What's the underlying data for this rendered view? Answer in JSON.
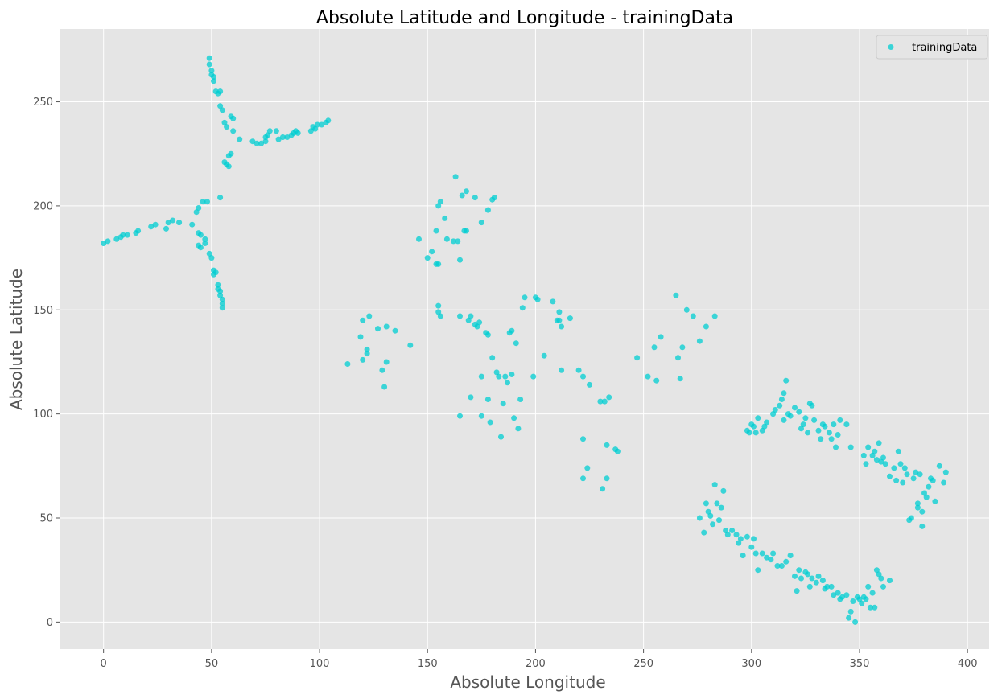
{
  "chart_data": {
    "type": "scatter",
    "title": "Absolute Latitude and Longitude - trainingData",
    "xlabel": "Absolute Longitude",
    "ylabel": "Absolute Latitude",
    "xlim": [
      -20,
      410
    ],
    "ylim": [
      -13,
      285
    ],
    "xticks": [
      0,
      50,
      100,
      150,
      200,
      250,
      300,
      350,
      400
    ],
    "yticks": [
      0,
      50,
      100,
      150,
      200,
      250
    ],
    "grid": true,
    "legend_position": "top-right",
    "series": [
      {
        "name": "trainingData",
        "color": "#00CED1",
        "points": [
          [
            0,
            182
          ],
          [
            2,
            183
          ],
          [
            6,
            184
          ],
          [
            8,
            185
          ],
          [
            9,
            186
          ],
          [
            11,
            186
          ],
          [
            15,
            187
          ],
          [
            16,
            188
          ],
          [
            22,
            190
          ],
          [
            24,
            191
          ],
          [
            29,
            189
          ],
          [
            30,
            192
          ],
          [
            32,
            193
          ],
          [
            35,
            192
          ],
          [
            41,
            191
          ],
          [
            43,
            197
          ],
          [
            44,
            199
          ],
          [
            46,
            202
          ],
          [
            48,
            202
          ],
          [
            49,
            271
          ],
          [
            49,
            268
          ],
          [
            50,
            265
          ],
          [
            50,
            263
          ],
          [
            51,
            262
          ],
          [
            51,
            260
          ],
          [
            52,
            255
          ],
          [
            53,
            254
          ],
          [
            54,
            255
          ],
          [
            54,
            248
          ],
          [
            55,
            246
          ],
          [
            56,
            240
          ],
          [
            57,
            238
          ],
          [
            59,
            243
          ],
          [
            60,
            242
          ],
          [
            60,
            236
          ],
          [
            63,
            232
          ],
          [
            69,
            231
          ],
          [
            71,
            230
          ],
          [
            73,
            230
          ],
          [
            75,
            231
          ],
          [
            75,
            233
          ],
          [
            76,
            234
          ],
          [
            77,
            236
          ],
          [
            80,
            236
          ],
          [
            81,
            232
          ],
          [
            83,
            233
          ],
          [
            85,
            233
          ],
          [
            87,
            234
          ],
          [
            88,
            235
          ],
          [
            89,
            236
          ],
          [
            90,
            235
          ],
          [
            96,
            236
          ],
          [
            97,
            238
          ],
          [
            98,
            237
          ],
          [
            99,
            239
          ],
          [
            101,
            239
          ],
          [
            103,
            240
          ],
          [
            104,
            241
          ],
          [
            56,
            221
          ],
          [
            57,
            220
          ],
          [
            58,
            219
          ],
          [
            58,
            224
          ],
          [
            59,
            225
          ],
          [
            54,
            204
          ],
          [
            44,
            187
          ],
          [
            45,
            186
          ],
          [
            44,
            181
          ],
          [
            45,
            180
          ],
          [
            47,
            184
          ],
          [
            47,
            182
          ],
          [
            49,
            177
          ],
          [
            50,
            175
          ],
          [
            51,
            169
          ],
          [
            51,
            167
          ],
          [
            52,
            168
          ],
          [
            53,
            162
          ],
          [
            53,
            160
          ],
          [
            54,
            159
          ],
          [
            54,
            157
          ],
          [
            55,
            155
          ],
          [
            55,
            153
          ],
          [
            55,
            151
          ],
          [
            113,
            124
          ],
          [
            119,
            137
          ],
          [
            120,
            145
          ],
          [
            120,
            126
          ],
          [
            122,
            131
          ],
          [
            122,
            129
          ],
          [
            123,
            147
          ],
          [
            127,
            141
          ],
          [
            129,
            121
          ],
          [
            130,
            113
          ],
          [
            131,
            125
          ],
          [
            131,
            142
          ],
          [
            135,
            140
          ],
          [
            142,
            133
          ],
          [
            146,
            184
          ],
          [
            150,
            175
          ],
          [
            152,
            178
          ],
          [
            154,
            172
          ],
          [
            154,
            188
          ],
          [
            155,
            172
          ],
          [
            155,
            200
          ],
          [
            155,
            149
          ],
          [
            155,
            152
          ],
          [
            156,
            202
          ],
          [
            156,
            147
          ],
          [
            158,
            194
          ],
          [
            159,
            184
          ],
          [
            162,
            183
          ],
          [
            163,
            214
          ],
          [
            164,
            183
          ],
          [
            165,
            174
          ],
          [
            166,
            205
          ],
          [
            167,
            188
          ],
          [
            168,
            188
          ],
          [
            168,
            207
          ],
          [
            172,
            204
          ],
          [
            175,
            192
          ],
          [
            178,
            198
          ],
          [
            180,
            203
          ],
          [
            181,
            204
          ],
          [
            165,
            147
          ],
          [
            169,
            145
          ],
          [
            170,
            108
          ],
          [
            170,
            147
          ],
          [
            172,
            143
          ],
          [
            173,
            142
          ],
          [
            174,
            144
          ],
          [
            175,
            118
          ],
          [
            175,
            99
          ],
          [
            177,
            139
          ],
          [
            178,
            138
          ],
          [
            178,
            107
          ],
          [
            179,
            96
          ],
          [
            180,
            127
          ],
          [
            182,
            120
          ],
          [
            183,
            118
          ],
          [
            184,
            89
          ],
          [
            185,
            105
          ],
          [
            186,
            118
          ],
          [
            187,
            115
          ],
          [
            188,
            139
          ],
          [
            189,
            140
          ],
          [
            189,
            119
          ],
          [
            190,
            98
          ],
          [
            191,
            134
          ],
          [
            192,
            93
          ],
          [
            193,
            107
          ],
          [
            194,
            151
          ],
          [
            195,
            156
          ],
          [
            165,
            99
          ],
          [
            199,
            118
          ],
          [
            200,
            156
          ],
          [
            201,
            155
          ],
          [
            204,
            128
          ],
          [
            208,
            154
          ],
          [
            210,
            145
          ],
          [
            211,
            145
          ],
          [
            211,
            149
          ],
          [
            212,
            121
          ],
          [
            212,
            142
          ],
          [
            216,
            146
          ],
          [
            220,
            121
          ],
          [
            222,
            118
          ],
          [
            222,
            88
          ],
          [
            222,
            69
          ],
          [
            224,
            74
          ],
          [
            225,
            114
          ],
          [
            230,
            106
          ],
          [
            231,
            64
          ],
          [
            232,
            106
          ],
          [
            233,
            85
          ],
          [
            233,
            69
          ],
          [
            234,
            108
          ],
          [
            237,
            83
          ],
          [
            238,
            82
          ],
          [
            247,
            127
          ],
          [
            252,
            118
          ],
          [
            255,
            132
          ],
          [
            256,
            116
          ],
          [
            258,
            137
          ],
          [
            265,
            157
          ],
          [
            266,
            127
          ],
          [
            267,
            117
          ],
          [
            268,
            132
          ],
          [
            270,
            150
          ],
          [
            273,
            147
          ],
          [
            276,
            135
          ],
          [
            279,
            142
          ],
          [
            283,
            147
          ],
          [
            298,
            92
          ],
          [
            299,
            91
          ],
          [
            300,
            95
          ],
          [
            301,
            94
          ],
          [
            302,
            91
          ],
          [
            303,
            98
          ],
          [
            305,
            92
          ],
          [
            306,
            94
          ],
          [
            307,
            96
          ],
          [
            310,
            100
          ],
          [
            311,
            102
          ],
          [
            313,
            104
          ],
          [
            314,
            107
          ],
          [
            315,
            97
          ],
          [
            315,
            110
          ],
          [
            316,
            116
          ],
          [
            317,
            100
          ],
          [
            318,
            99
          ],
          [
            320,
            103
          ],
          [
            322,
            101
          ],
          [
            323,
            93
          ],
          [
            324,
            95
          ],
          [
            325,
            98
          ],
          [
            326,
            91
          ],
          [
            327,
            105
          ],
          [
            328,
            104
          ],
          [
            329,
            97
          ],
          [
            331,
            92
          ],
          [
            332,
            88
          ],
          [
            333,
            95
          ],
          [
            334,
            94
          ],
          [
            336,
            91
          ],
          [
            337,
            88
          ],
          [
            338,
            95
          ],
          [
            339,
            84
          ],
          [
            340,
            90
          ],
          [
            341,
            97
          ],
          [
            344,
            95
          ],
          [
            346,
            84
          ],
          [
            352,
            80
          ],
          [
            353,
            76
          ],
          [
            354,
            84
          ],
          [
            356,
            80
          ],
          [
            357,
            82
          ],
          [
            358,
            78
          ],
          [
            359,
            86
          ],
          [
            360,
            77
          ],
          [
            361,
            79
          ],
          [
            362,
            76
          ],
          [
            364,
            70
          ],
          [
            366,
            74
          ],
          [
            367,
            68
          ],
          [
            368,
            82
          ],
          [
            369,
            76
          ],
          [
            370,
            67
          ],
          [
            371,
            74
          ],
          [
            372,
            71
          ],
          [
            373,
            49
          ],
          [
            374,
            50
          ],
          [
            375,
            69
          ],
          [
            376,
            72
          ],
          [
            377,
            55
          ],
          [
            377,
            57
          ],
          [
            378,
            71
          ],
          [
            379,
            53
          ],
          [
            379,
            46
          ],
          [
            380,
            62
          ],
          [
            381,
            60
          ],
          [
            382,
            65
          ],
          [
            383,
            69
          ],
          [
            384,
            68
          ],
          [
            385,
            58
          ],
          [
            387,
            75
          ],
          [
            389,
            67
          ],
          [
            390,
            72
          ],
          [
            276,
            50
          ],
          [
            278,
            43
          ],
          [
            279,
            57
          ],
          [
            280,
            53
          ],
          [
            281,
            51
          ],
          [
            282,
            47
          ],
          [
            283,
            66
          ],
          [
            284,
            57
          ],
          [
            285,
            49
          ],
          [
            286,
            55
          ],
          [
            287,
            63
          ],
          [
            288,
            44
          ],
          [
            289,
            42
          ],
          [
            291,
            44
          ],
          [
            293,
            42
          ],
          [
            294,
            38
          ],
          [
            295,
            40
          ],
          [
            296,
            32
          ],
          [
            298,
            41
          ],
          [
            300,
            36
          ],
          [
            301,
            40
          ],
          [
            302,
            33
          ],
          [
            303,
            25
          ],
          [
            305,
            33
          ],
          [
            307,
            31
          ],
          [
            309,
            30
          ],
          [
            310,
            33
          ],
          [
            312,
            27
          ],
          [
            314,
            27
          ],
          [
            316,
            29
          ],
          [
            318,
            32
          ],
          [
            320,
            22
          ],
          [
            321,
            15
          ],
          [
            322,
            25
          ],
          [
            323,
            21
          ],
          [
            325,
            24
          ],
          [
            326,
            23
          ],
          [
            327,
            17
          ],
          [
            328,
            21
          ],
          [
            330,
            19
          ],
          [
            331,
            22
          ],
          [
            333,
            20
          ],
          [
            334,
            16
          ],
          [
            335,
            17
          ],
          [
            337,
            17
          ],
          [
            338,
            13
          ],
          [
            340,
            14
          ],
          [
            341,
            11
          ],
          [
            342,
            12
          ],
          [
            344,
            13
          ],
          [
            345,
            2
          ],
          [
            346,
            5
          ],
          [
            347,
            10
          ],
          [
            348,
            0
          ],
          [
            349,
            12
          ],
          [
            350,
            11
          ],
          [
            351,
            9
          ],
          [
            352,
            12
          ],
          [
            353,
            11
          ],
          [
            354,
            17
          ],
          [
            355,
            7
          ],
          [
            356,
            14
          ],
          [
            357,
            7
          ],
          [
            358,
            25
          ],
          [
            359,
            23
          ],
          [
            360,
            21
          ],
          [
            361,
            17
          ],
          [
            364,
            20
          ]
        ]
      }
    ]
  }
}
